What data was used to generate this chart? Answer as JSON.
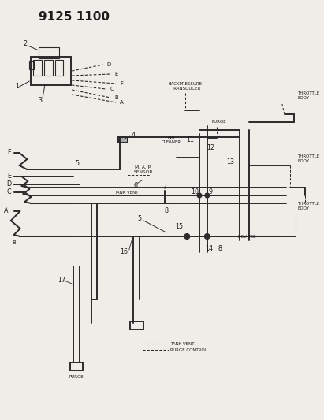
{
  "title": "9125 1100",
  "bg_color": "#f0ede8",
  "line_color": "#2a2a2a",
  "text_color": "#1a1a1a",
  "title_fontsize": 11,
  "label_fontsize": 4.8,
  "number_fontsize": 5.8,
  "fig_width": 4.11,
  "fig_height": 5.33,
  "dpi": 100,
  "valve_ports": [
    [
      "D",
      93,
      90,
      133,
      82
    ],
    [
      "E",
      93,
      96,
      143,
      94
    ],
    [
      "F",
      93,
      102,
      150,
      106
    ],
    [
      "C",
      93,
      108,
      137,
      113
    ],
    [
      "B",
      93,
      114,
      143,
      124
    ],
    [
      "A",
      93,
      120,
      150,
      130
    ]
  ]
}
